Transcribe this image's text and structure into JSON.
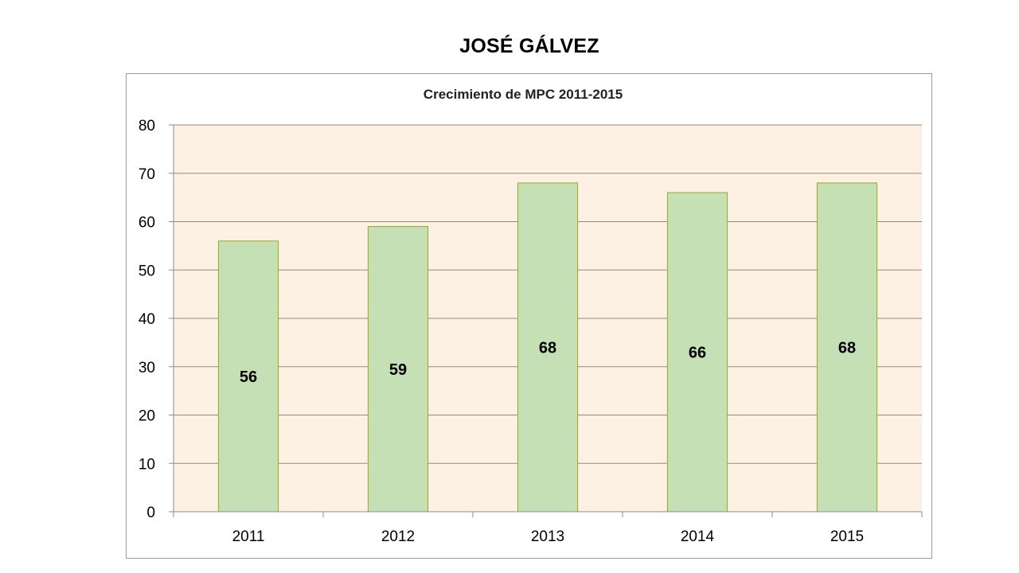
{
  "page": {
    "title": "JOSÉ GÁLVEZ"
  },
  "colors": {
    "plot_background": "#fdf1e4",
    "bar_fill": "#c5e0b4",
    "bar_stroke": "#9aa820",
    "gridline": "#8c8c8c",
    "axis": "#8c8c8c"
  },
  "chart_data": {
    "type": "bar",
    "title": "Crecimiento de MPC 2011-2015",
    "xlabel": "",
    "ylabel": "",
    "categories": [
      "2011",
      "2012",
      "2013",
      "2014",
      "2015"
    ],
    "values": [
      56,
      59,
      68,
      66,
      68
    ],
    "data_labels": [
      "56",
      "59",
      "68",
      "66",
      "68"
    ],
    "ylim": [
      0,
      80
    ],
    "yticks": [
      0,
      10,
      20,
      30,
      40,
      50,
      60,
      70,
      80
    ],
    "ytick_labels": [
      "0",
      "10",
      "20",
      "30",
      "40",
      "50",
      "60",
      "70",
      "80"
    ],
    "grid": true,
    "legend": "none"
  }
}
